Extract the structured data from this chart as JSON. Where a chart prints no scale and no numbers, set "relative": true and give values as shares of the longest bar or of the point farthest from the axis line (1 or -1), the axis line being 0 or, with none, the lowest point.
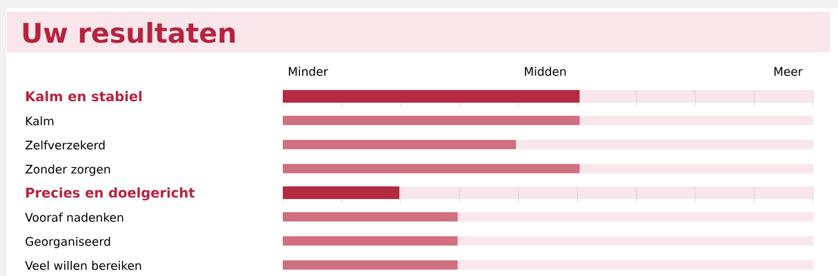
{
  "chart_data": {
    "type": "bar",
    "orientation": "horizontal",
    "title": "Uw resultaten",
    "relative": true,
    "stacked": true,
    "categories": [
      "Kalm en stabiel",
      "Kalm",
      "Zelfverzekerd",
      "Zonder zorgen",
      "Precies en doelgericht",
      "Vooraf nadenken",
      "Georganiseerd",
      "Veel willen bereiken"
    ],
    "series": [
      {
        "color": "#b42a41",
        "values": [
          0.56,
          null,
          null,
          null,
          0.22,
          null,
          null,
          null
        ]
      },
      {
        "color": "#cf6f7f",
        "values": [
          null,
          0.56,
          0.44,
          0.56,
          null,
          0.33,
          0.33,
          0.33
        ]
      },
      {
        "color": "#f8e6ea",
        "values": [
          0.44,
          0.44,
          0.56,
          0.44,
          0.78,
          0.67,
          0.67,
          0.67
        ]
      }
    ],
    "annotations": [
      "Minder",
      "Midden",
      "Meer"
    ]
  }
}
